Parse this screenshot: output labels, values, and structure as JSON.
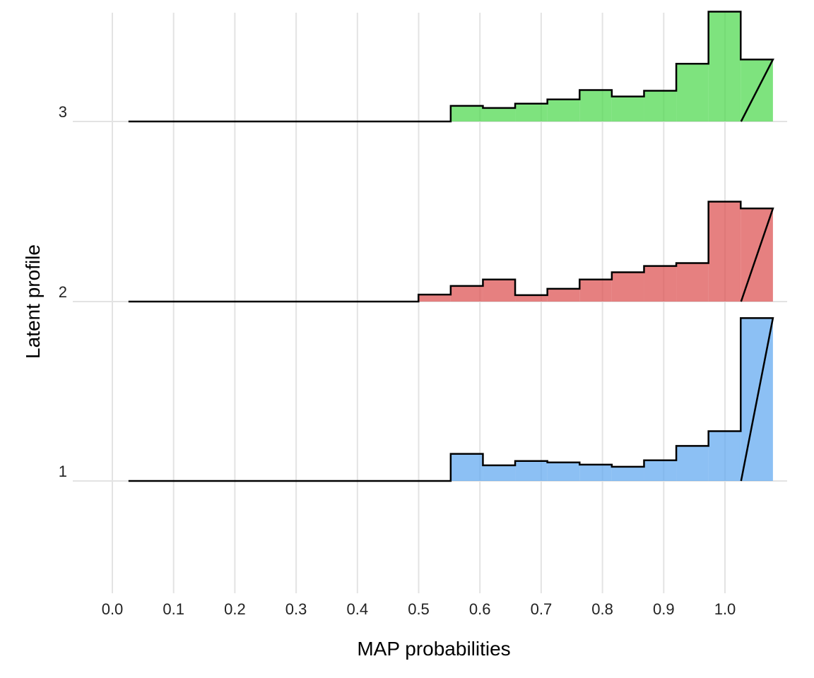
{
  "chart_data": {
    "type": "ridgeline-histogram",
    "xlabel": "MAP probabilities",
    "ylabel": "Latent profile",
    "x_ticks": [
      0.0,
      0.1,
      0.2,
      0.3,
      0.4,
      0.5,
      0.6,
      0.7,
      0.8,
      0.9,
      1.0
    ],
    "x_tick_labels": [
      "0.0",
      "0.1",
      "0.2",
      "0.3",
      "0.4",
      "0.5",
      "0.6",
      "0.7",
      "0.8",
      "0.9",
      "1.0"
    ],
    "xlim": [
      -0.025,
      1.1
    ],
    "grid": true,
    "bin_width": 0.0526,
    "bins_start": 0.0263,
    "bins_end": 1.0263,
    "series": [
      {
        "name": "1",
        "color": "#5fa8f0",
        "values": [
          0,
          0,
          0,
          0,
          0,
          0,
          0,
          0,
          0,
          0,
          0.151,
          0.087,
          0.111,
          0.103,
          0.091,
          0.079,
          0.115,
          0.195,
          0.277,
          0.906
        ]
      },
      {
        "name": "2",
        "color": "#dc4f4f",
        "values": [
          0,
          0,
          0,
          0,
          0,
          0,
          0,
          0,
          0,
          0.039,
          0.087,
          0.123,
          0.036,
          0.071,
          0.123,
          0.163,
          0.198,
          0.214,
          0.556,
          0.518
        ]
      },
      {
        "name": "3",
        "color": "#4cd84c",
        "values": [
          0,
          0,
          0,
          0,
          0,
          0,
          0,
          0,
          0,
          0,
          0.087,
          0.075,
          0.099,
          0.123,
          0.175,
          0.139,
          0.171,
          0.321,
          0.611,
          0.345
        ]
      }
    ]
  }
}
